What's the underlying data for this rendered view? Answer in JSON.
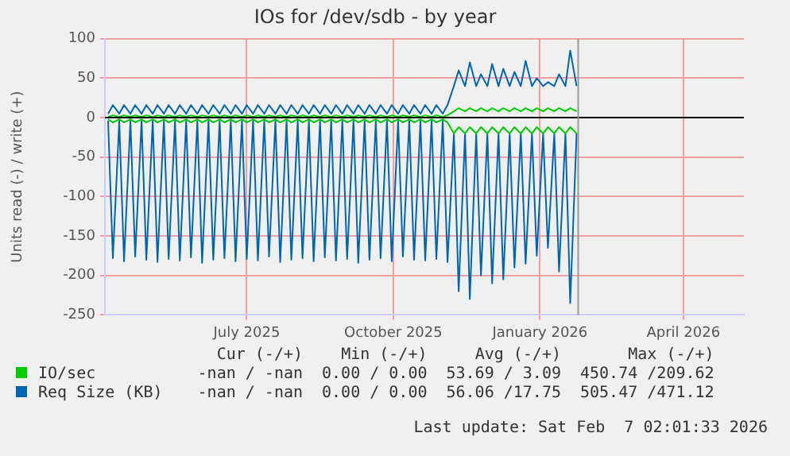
{
  "chart_data": {
    "type": "line",
    "title": "IOs for /dev/sdb - by year",
    "ylabel": "Units read (-) / write (+)",
    "x": [
      "2025-04-05",
      "2025-04-08",
      "2025-04-12",
      "2025-04-15",
      "2025-04-19",
      "2025-04-22",
      "2025-04-26",
      "2025-04-29",
      "2025-05-03",
      "2025-05-06",
      "2025-05-10",
      "2025-05-13",
      "2025-05-17",
      "2025-05-20",
      "2025-05-24",
      "2025-05-27",
      "2025-05-31",
      "2025-06-03",
      "2025-06-07",
      "2025-06-10",
      "2025-06-14",
      "2025-06-17",
      "2025-06-21",
      "2025-06-24",
      "2025-06-28",
      "2025-07-01",
      "2025-07-05",
      "2025-07-08",
      "2025-07-12",
      "2025-07-15",
      "2025-07-19",
      "2025-07-22",
      "2025-07-26",
      "2025-07-29",
      "2025-08-02",
      "2025-08-05",
      "2025-08-09",
      "2025-08-12",
      "2025-08-16",
      "2025-08-19",
      "2025-08-23",
      "2025-08-26",
      "2025-08-30",
      "2025-09-02",
      "2025-09-06",
      "2025-09-09",
      "2025-09-13",
      "2025-09-16",
      "2025-09-20",
      "2025-09-23",
      "2025-09-27",
      "2025-09-30",
      "2025-10-04",
      "2025-10-07",
      "2025-10-11",
      "2025-10-14",
      "2025-10-18",
      "2025-10-21",
      "2025-10-25",
      "2025-10-28",
      "2025-11-01",
      "2025-11-04",
      "2025-11-08",
      "2025-11-11",
      "2025-11-15",
      "2025-11-18",
      "2025-11-22",
      "2025-11-25",
      "2025-11-29",
      "2025-12-02",
      "2025-12-06",
      "2025-12-09",
      "2025-12-13",
      "2025-12-16",
      "2025-12-20",
      "2025-12-23",
      "2025-12-27",
      "2025-12-30",
      "2026-01-03",
      "2026-01-06",
      "2026-01-10",
      "2026-01-13",
      "2026-01-17",
      "2026-01-20",
      "2026-01-24"
    ],
    "series": [
      {
        "name": "IO/sec",
        "color": "#00cc00",
        "values": [
          1,
          3,
          1,
          3,
          1,
          3,
          1,
          3,
          1,
          3,
          1,
          3,
          1,
          3,
          1,
          3,
          1,
          3,
          1,
          3,
          1,
          3,
          1,
          3,
          1,
          3,
          1,
          3,
          1,
          3,
          1,
          3,
          1,
          3,
          1,
          3,
          1,
          3,
          1,
          3,
          1,
          3,
          1,
          3,
          1,
          3,
          1,
          3,
          1,
          3,
          1,
          3,
          1,
          3,
          1,
          3,
          1,
          3,
          1,
          3,
          1,
          3,
          8,
          12,
          8,
          12,
          8,
          12,
          8,
          12,
          8,
          12,
          8,
          12,
          8,
          12,
          8,
          12,
          8,
          12,
          8,
          12,
          8,
          12,
          8
        ]
      },
      {
        "color": "#00cc00",
        "values": [
          -2,
          -6,
          -2,
          -6,
          -2,
          -6,
          -2,
          -6,
          -2,
          -6,
          -2,
          -6,
          -2,
          -6,
          -2,
          -6,
          -2,
          -6,
          -2,
          -6,
          -2,
          -6,
          -2,
          -6,
          -2,
          -6,
          -2,
          -6,
          -2,
          -6,
          -2,
          -6,
          -2,
          -6,
          -2,
          -6,
          -2,
          -6,
          -2,
          -6,
          -2,
          -6,
          -2,
          -6,
          -2,
          -6,
          -2,
          -6,
          -2,
          -6,
          -2,
          -6,
          -2,
          -6,
          -2,
          -6,
          -2,
          -6,
          -2,
          -6,
          -2,
          -6,
          -20,
          -12,
          -20,
          -12,
          -20,
          -12,
          -20,
          -12,
          -20,
          -12,
          -20,
          -12,
          -20,
          -12,
          -20,
          -12,
          -20,
          -12,
          -20,
          -12,
          -20,
          -12,
          -20
        ]
      },
      {
        "name": "Req Size (KB)",
        "color": "#0066b3",
        "values": [
          5,
          16,
          5,
          16,
          5,
          16,
          5,
          16,
          5,
          16,
          5,
          16,
          5,
          16,
          5,
          16,
          5,
          16,
          5,
          16,
          5,
          16,
          5,
          16,
          5,
          16,
          5,
          16,
          5,
          16,
          5,
          16,
          5,
          16,
          5,
          16,
          5,
          16,
          5,
          16,
          5,
          16,
          5,
          16,
          5,
          16,
          5,
          16,
          5,
          16,
          5,
          16,
          5,
          16,
          5,
          16,
          5,
          16,
          5,
          16,
          5,
          16,
          40,
          60,
          40,
          70,
          40,
          55,
          40,
          68,
          40,
          62,
          40,
          58,
          40,
          72,
          40,
          50,
          40,
          45,
          40,
          55,
          40,
          85,
          40
        ]
      },
      {
        "color": "#0066b3",
        "values": [
          -4,
          -178,
          -4,
          -182,
          -4,
          -176,
          -4,
          -180,
          -4,
          -183,
          -4,
          -179,
          -4,
          -181,
          -4,
          -177,
          -4,
          -184,
          -4,
          -180,
          -4,
          -178,
          -4,
          -182,
          -4,
          -179,
          -4,
          -181,
          -4,
          -176,
          -4,
          -183,
          -4,
          -180,
          -4,
          -178,
          -4,
          -182,
          -4,
          -177,
          -4,
          -181,
          -4,
          -179,
          -4,
          -184,
          -4,
          -180,
          -4,
          -178,
          -4,
          -182,
          -4,
          -176,
          -4,
          -180,
          -4,
          -181,
          -4,
          -179,
          -4,
          -183,
          -20,
          -220,
          -20,
          -230,
          -20,
          -200,
          -20,
          -210,
          -20,
          -205,
          -20,
          -190,
          -20,
          -185,
          -20,
          -175,
          -20,
          -165,
          -20,
          -195,
          -20,
          -235,
          -20
        ]
      }
    ],
    "xlim": [
      "2025-04-03",
      "2026-05-09"
    ],
    "xticks": [
      {
        "value": "2025-07-01",
        "label": "July 2025"
      },
      {
        "value": "2025-10-01",
        "label": "October 2025"
      },
      {
        "value": "2026-01-01",
        "label": "January 2026"
      },
      {
        "value": "2026-04-01",
        "label": "April 2026"
      }
    ],
    "ylim": [
      -250,
      100
    ],
    "yticks": [
      -250,
      -200,
      -150,
      -100,
      -50,
      0,
      50,
      100
    ],
    "ref_lines": [
      {
        "axis": "y",
        "value": 0,
        "color": "#000000"
      },
      {
        "axis": "x",
        "value": "2026-01-25",
        "color": "#999999"
      }
    ],
    "grid": true,
    "legend": "bottom",
    "marker": "none",
    "line_style": "solid",
    "annotations": [
      "Cur (-/+)",
      "Min (-/+)",
      "Avg (-/+)",
      "Max (-/+)",
      "-nan / -nan",
      "0.00 / 0.00",
      "53.69 / 3.09",
      "450.74 /209.62",
      "-nan / -nan",
      "0.00 / 0.00",
      "56.06 /17.75",
      "505.47 /471.12",
      "Last update: Sat Feb  7 02:01:33 2026"
    ]
  }
}
